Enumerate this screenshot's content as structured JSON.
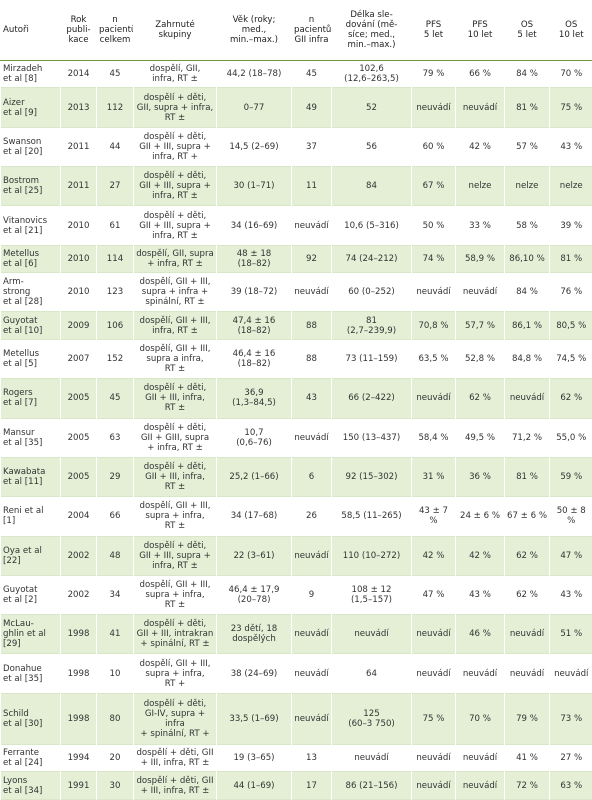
{
  "table": {
    "header": [
      "Autoři",
      "Rok\npubli-\nkace",
      "n\npacientů\ncelkem",
      "Zahrnuté\nskupiny",
      "Věk (roky;\nmed.,\nmin.–max.)",
      "n\npacientů\nGII infra",
      "Délka sle-\ndování (mě-\nsíce; med.,\nmin.–max.)",
      "PFS\n5 let",
      "PFS\n10 let",
      "OS\n5 let",
      "OS\n10 let"
    ],
    "rows": [
      [
        "Mirzadeh\net al [8]",
        "2014",
        "45",
        "dospělí, GII,\ninfra, RT ±",
        "44,2 (18–78)",
        "45",
        "102,6\n(12,6–263,5)",
        "79 %",
        "66 %",
        "84 %",
        "70 %"
      ],
      [
        "Aizer\net al [9]",
        "2013",
        "112",
        "dospělí + děti,\nGII, supra + infra,\nRT ±",
        "0–77",
        "49",
        "52",
        "neuvádí",
        "neuvádí",
        "81 %",
        "75 %"
      ],
      [
        "Swanson\net al [20]",
        "2011",
        "44",
        "dospělí + děti,\nGII + III, supra +\ninfra, RT +",
        "14,5 (2–69)",
        "37",
        "56",
        "60 %",
        "42 %",
        "57 %",
        "43 %"
      ],
      [
        "Bostrom\net al [25]",
        "2011",
        "27",
        "dospělí + děti,\nGII + III, supra +\ninfra, RT ±",
        "30 (1–71)",
        "11",
        "84",
        "67 %",
        "nelze",
        "nelze",
        "nelze"
      ],
      [
        "Vitanovics\net al [21]",
        "2010",
        "61",
        "dospělí + děti,\nGII + III, supra +\ninfra, RT ±",
        "34 (16–69)",
        "neuvádí",
        "10,6 (5–316)",
        "50 %",
        "33 %",
        "58 %",
        "39 %"
      ],
      [
        "Metellus\net al [6]",
        "2010",
        "114",
        "dospělí, GII, supra\n+ infra, RT ±",
        "48 ± 18\n(18–82)",
        "92",
        "74 (24–212)",
        "74 %",
        "58,9 %",
        "86,10 %",
        "81 %"
      ],
      [
        "Arm-\nstrong\net al [28]",
        "2010",
        "123",
        "dospělí, GII + III,\nsupra + infra +\nspinální, RT ±",
        "39 (18–72)",
        "neuvádí",
        "60 (0–252)",
        "neuvádí",
        "neuvádí",
        "84 %",
        "76 %"
      ],
      [
        "Guyotat\net al [10]",
        "2009",
        "106",
        "dospělí, GII + III,\ninfra, RT ±",
        "47,4 ± 16\n(18–82)",
        "88",
        "81\n(2,7–239,9)",
        "70,8 %",
        "57,7 %",
        "86,1 %",
        "80,5 %"
      ],
      [
        "Metellus\net al [5]",
        "2007",
        "152",
        "dospělí, GII + III,\nsupra a infra,\nRT ±",
        "46,4 ± 16\n(18–82)",
        "88",
        "73 (11–159)",
        "63,5 %",
        "52,8 %",
        "84,8 %",
        "74,5 %"
      ],
      [
        "Rogers\net al [7]",
        "2005",
        "45",
        "dospělí + děti,\nGII + III, infra,\nRT ±",
        "36,9\n(1,3–84,5)",
        "43",
        "66 (2–422)",
        "neuvádí",
        "62 %",
        "neuvádí",
        "62 %"
      ],
      [
        "Mansur\net al [35]",
        "2005",
        "63",
        "dospělí + děti,\nGII + GIII, supra\n+ infra, RT ±",
        "10,7\n(0,6–76)",
        "neuvádí",
        "150 (13–437)",
        "58,4 %",
        "49,5 %",
        "71,2 %",
        "55,0 %"
      ],
      [
        "Kawabata\net al [11]",
        "2005",
        "29",
        "dospělí + děti,\nGII + III, infra,\nRT ±",
        "25,2 (1–66)",
        "6",
        "92 (15–302)",
        "31 %",
        "36 %",
        "81 %",
        "59 %"
      ],
      [
        "Reni et al\n[1]",
        "2004",
        "66",
        "dospělí, GII + III,\nsupra + infra,\nRT ±",
        "34 (17–68)",
        "26",
        "58,5 (11–265)",
        "43 ± 7 %",
        "24 ± 6 %",
        "67 ± 6 %",
        "50 ± 8 %"
      ],
      [
        "Oya et al\n[22]",
        "2002",
        "48",
        "dospělí + děti,\nGII + III, supra +\ninfra, RT ±",
        "22 (3–61)",
        "neuvádí",
        "110 (10–272)",
        "42 %",
        "42 %",
        "62 %",
        "47 %"
      ],
      [
        "Guyotat\net al [2]",
        "2002",
        "34",
        "dospělí, GII + III,\nsupra + infra,\nRT ±",
        "46,4 ± 17,9\n(20–78)",
        "9",
        "108 ± 12\n(1,5–157)",
        "47 %",
        "43 %",
        "62 %",
        "43 %"
      ],
      [
        "McLau-\nghlin et al\n[29]",
        "1998",
        "41",
        "dospělí + děti,\nGII + III, intrakran\n+ spinální, RT ±",
        "23 dětí, 18\ndospělých",
        "neuvádí",
        "neuvádí",
        "neuvádí",
        "46 %",
        "neuvádí",
        "51 %"
      ],
      [
        "Donahue\net al [35]",
        "1998",
        "10",
        "dospělí, GII + III,\nsupra + infra,\nRT +",
        "38 (24–69)",
        "neuvádí",
        "64",
        "neuvádí",
        "neuvádí",
        "neuvádí",
        "neuvádí"
      ],
      [
        "Schild\net al [30]",
        "1998",
        "80",
        "dospělí + děti,\nGI-IV, supra + infra\n+ spinální, RT +",
        "33,5 (1–69)",
        "neuvádí",
        "125\n(60–3 750)",
        "75 %",
        "70 %",
        "79 %",
        "73 %"
      ],
      [
        "Ferrante\net al [24]",
        "1994",
        "20",
        "dospělí + děti, GII\n+ III, infra, RT ±",
        "19 (3–65)",
        "13",
        "neuvádí",
        "neuvádí",
        "neuvádí",
        "41 %",
        "27 %"
      ],
      [
        "Lyons\net al [34]",
        "1991",
        "30",
        "dospělí + děti, GII\n+ III, infra, RT ±",
        "44 (1–69)",
        "17",
        "86 (21–156)",
        "neuvádí",
        "neuvádí",
        "72 %",
        "63 %"
      ]
    ]
  }
}
